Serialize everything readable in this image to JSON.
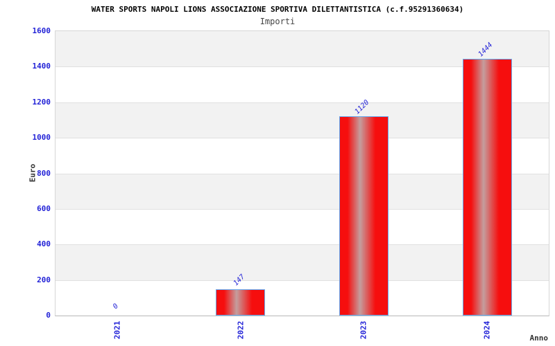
{
  "chart_data": {
    "type": "bar",
    "title": "WATER SPORTS NAPOLI LIONS ASSOCIAZIONE SPORTIVA DILETTANTISTICA (c.f.95291360634)",
    "subtitle": "Importi",
    "categories": [
      "2021",
      "2022",
      "2023",
      "2024"
    ],
    "values": [
      0,
      147,
      1120,
      1444
    ],
    "value_labels": [
      "0",
      "147",
      "1120",
      "1444"
    ],
    "xlabel": "Anno",
    "ylabel": "Euro",
    "ylim": [
      0,
      1600
    ],
    "ytick_step": 200,
    "ytick_labels": [
      "0",
      "200",
      "400",
      "600",
      "800",
      "1000",
      "1200",
      "1400",
      "1600"
    ],
    "grid": true,
    "legend_position": "none",
    "x_tick_rotation_deg": -90,
    "value_label_rotation_deg": -45,
    "colors": {
      "tick_label_blue": "#2323d7",
      "value_label_blue": "#2323d7",
      "bar_red": "#f60e0e",
      "bar_center_sheen": "#c49e9e",
      "bar_edge": "#63a8f0",
      "band_gray": "#f2f2f2",
      "band_white": "#ffffff",
      "gridline": "#e0e0e0",
      "plot_border": "#d6d6d6",
      "axis_line": "#b8b8b8",
      "title_color": "#000000",
      "subtitle_color": "#444444",
      "axis_title_color": "#333333"
    }
  }
}
